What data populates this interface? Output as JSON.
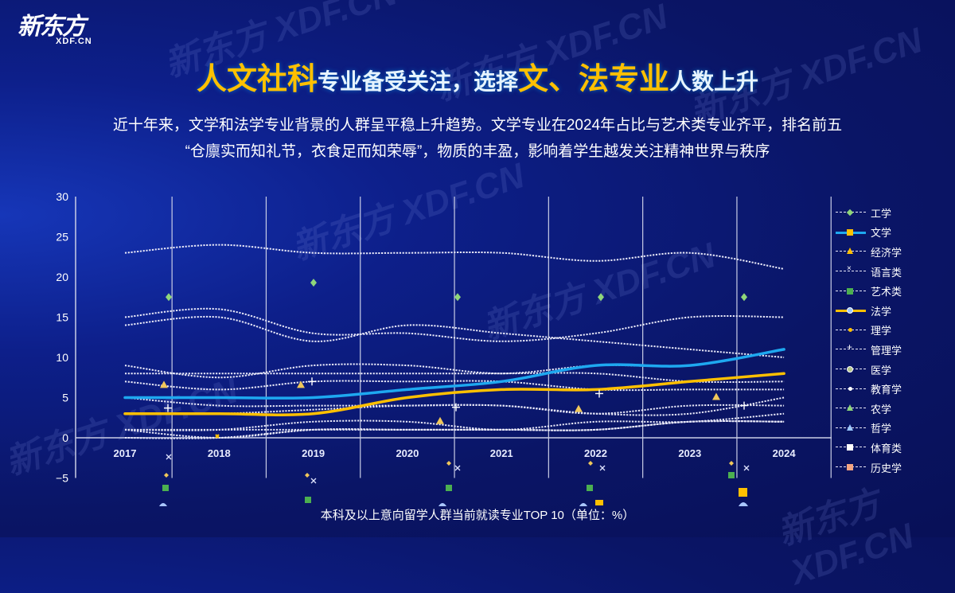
{
  "logo": {
    "cn": "新东方",
    "en": "XDF.CN"
  },
  "title": {
    "parts": [
      {
        "text": "人文社科",
        "highlight": true
      },
      {
        "text": "专业备受关注，选择",
        "highlight": false
      },
      {
        "text": "文、法专业",
        "highlight": true
      },
      {
        "text": "人数上升",
        "highlight": false
      }
    ]
  },
  "subtitle": {
    "line1": "近十年来，文学和法学专业背景的人群呈平稳上升趋势。文学专业在2024年占比与艺术类专业齐平，排名前五",
    "line2": "“仓廪实而知礼节，衣食足而知荣辱”，物质的丰盈，影响着学生越发关注精神世界与秩序"
  },
  "watermark": "新东方 XDF.CN",
  "caption": "本科及以上意向留学人群当前就读专业TOP 10（单位：%）",
  "colors": {
    "accent_yellow": "#ffc000",
    "accent_blue": "#1ea8f0",
    "grid": "#c9cde6"
  },
  "chart_data": {
    "type": "line",
    "title": "本科及以上意向留学人群当前就读专业TOP 10（单位：%）",
    "x": [
      "2017",
      "2018",
      "2019",
      "2020",
      "2021",
      "2022",
      "2023",
      "2024"
    ],
    "ylim": [
      -5,
      30
    ],
    "yticks": [
      "30",
      "25",
      "20",
      "15",
      "10",
      "5",
      "0",
      "−5"
    ],
    "legend_position": "right",
    "series": [
      {
        "name": "工学",
        "style": "dotted",
        "values": [
          23,
          24,
          23,
          23,
          23,
          22,
          23,
          21
        ]
      },
      {
        "name": "文学",
        "style": "solid-blue",
        "values": [
          5,
          5,
          5,
          6,
          7,
          9,
          9,
          11
        ]
      },
      {
        "name": "经济学",
        "style": "dotted",
        "values": [
          15,
          16,
          13,
          13,
          12,
          13,
          15,
          15
        ]
      },
      {
        "name": "语言类",
        "style": "dotted",
        "values": [
          14,
          15,
          12,
          14,
          13,
          12,
          11,
          10
        ]
      },
      {
        "name": "艺术类",
        "style": "dotted",
        "values": [
          9,
          7.5,
          9,
          9,
          8,
          9,
          9,
          11
        ]
      },
      {
        "name": "法学",
        "style": "solid-yellow",
        "values": [
          3,
          3,
          3,
          5,
          6,
          6,
          7,
          8
        ]
      },
      {
        "name": "理学",
        "style": "dotted",
        "values": [
          8,
          8,
          8,
          8,
          8,
          8,
          7,
          7
        ]
      },
      {
        "name": "管理学",
        "style": "dotted",
        "values": [
          7,
          6,
          7,
          7,
          7,
          6,
          6,
          6
        ]
      },
      {
        "name": "医学",
        "style": "dotted",
        "values": [
          5,
          4,
          4,
          4,
          4,
          3,
          4,
          4
        ]
      },
      {
        "name": "教育学",
        "style": "dotted",
        "values": [
          3,
          3,
          3.5,
          4,
          4,
          3,
          3,
          5
        ]
      },
      {
        "name": "农学",
        "style": "dotted",
        "values": [
          1,
          1,
          2,
          2,
          1,
          2,
          2,
          3
        ]
      },
      {
        "name": "哲学",
        "style": "dotted",
        "values": [
          1,
          0,
          1,
          1,
          1,
          1,
          2,
          2
        ]
      },
      {
        "name": "体育类",
        "style": "dotted",
        "values": [
          0,
          0,
          1,
          1,
          1,
          1,
          2,
          2
        ]
      },
      {
        "name": "历史学",
        "style": "dotted",
        "values": [
          1,
          1,
          1,
          1,
          1,
          1,
          2,
          2
        ]
      }
    ]
  },
  "legend": [
    {
      "name": "工学",
      "line": "dotted",
      "marker": "diamond",
      "color": "#8fd67a"
    },
    {
      "name": "文学",
      "line": "blue",
      "marker": "square",
      "color": "#ffc000"
    },
    {
      "name": "经济学",
      "line": "dotted",
      "marker": "triangle",
      "color": "#ffc000"
    },
    {
      "name": "语言类",
      "line": "dotted",
      "marker": "x",
      "color": "#ffffff"
    },
    {
      "name": "艺术类",
      "line": "dotted",
      "marker": "square",
      "color": "#4caf50"
    },
    {
      "name": "法学",
      "line": "yellow",
      "marker": "circle",
      "color": "#9cc8ff"
    },
    {
      "name": "理学",
      "line": "dotted",
      "marker": "dot",
      "color": "#ffc000"
    },
    {
      "name": "管理学",
      "line": "dotted",
      "marker": "plus",
      "color": "#ffffff"
    },
    {
      "name": "医学",
      "line": "dotted",
      "marker": "circle",
      "color": "#b8c98a"
    },
    {
      "name": "教育学",
      "line": "dotted",
      "marker": "dot",
      "color": "#ffffff"
    },
    {
      "name": "农学",
      "line": "dotted",
      "marker": "triangle",
      "color": "#8fd67a"
    },
    {
      "name": "哲学",
      "line": "dotted",
      "marker": "triangle",
      "color": "#9cc8ff"
    },
    {
      "name": "体育类",
      "line": "dotted",
      "marker": "square",
      "color": "#ffffff"
    },
    {
      "name": "历史学",
      "line": "dotted",
      "marker": "square",
      "color": "#f4a582"
    }
  ]
}
